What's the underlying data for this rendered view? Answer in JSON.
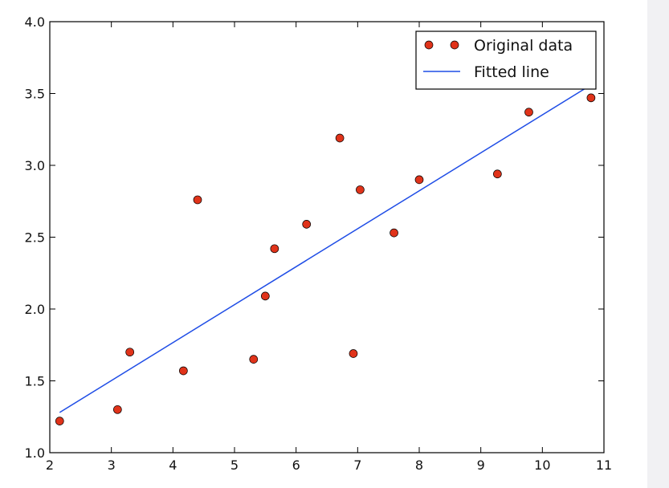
{
  "chart_data": {
    "type": "scatter",
    "title": "",
    "xlabel": "",
    "ylabel": "",
    "xlim": [
      2,
      11
    ],
    "ylim": [
      1.0,
      4.0
    ],
    "x_ticks": [
      "2",
      "3",
      "4",
      "5",
      "6",
      "7",
      "8",
      "9",
      "10",
      "11"
    ],
    "y_ticks": [
      "1.0",
      "1.5",
      "2.0",
      "2.5",
      "3.0",
      "3.5",
      "4.0"
    ],
    "grid": false,
    "legend_position": "top-right",
    "series": [
      {
        "name": "Original data",
        "kind": "points",
        "color": "#e0331a",
        "points": [
          [
            2.16,
            1.22
          ],
          [
            3.1,
            1.3
          ],
          [
            3.3,
            1.7
          ],
          [
            4.17,
            1.57
          ],
          [
            4.4,
            2.76
          ],
          [
            5.31,
            1.65
          ],
          [
            5.5,
            2.09
          ],
          [
            5.65,
            2.42
          ],
          [
            6.17,
            2.59
          ],
          [
            6.71,
            3.19
          ],
          [
            6.93,
            1.69
          ],
          [
            7.04,
            2.83
          ],
          [
            7.59,
            2.53
          ],
          [
            8.0,
            2.9
          ],
          [
            9.27,
            2.94
          ],
          [
            9.78,
            3.37
          ],
          [
            10.79,
            3.47
          ]
        ]
      },
      {
        "name": "Fitted line",
        "kind": "line",
        "color": "#1f4de6",
        "points": [
          [
            2.16,
            1.28
          ],
          [
            10.79,
            3.56
          ]
        ]
      }
    ]
  }
}
